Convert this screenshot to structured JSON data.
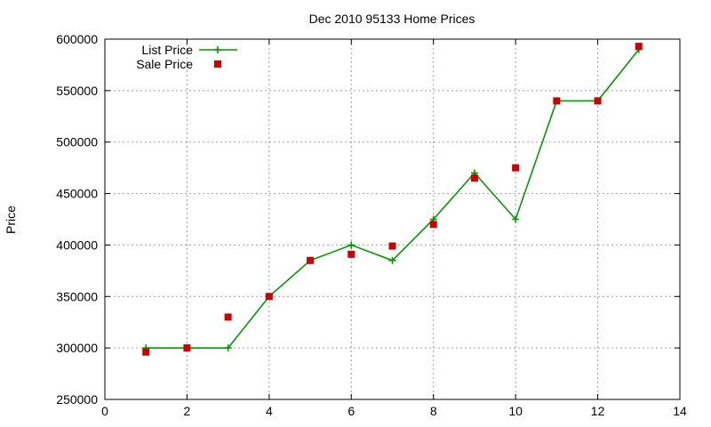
{
  "chart_data": {
    "type": "line",
    "title": "Dec 2010 95133 Home Prices",
    "xlabel": "",
    "ylabel": "Price",
    "xlim": [
      0,
      14
    ],
    "ylim": [
      250000,
      600000
    ],
    "x_ticks": [
      "0",
      "2",
      "4",
      "6",
      "8",
      "10",
      "12",
      "14"
    ],
    "y_ticks": [
      "250000",
      "300000",
      "350000",
      "400000",
      "450000",
      "500000",
      "550000",
      "600000"
    ],
    "grid": true,
    "legend_position": "top-left",
    "series": [
      {
        "name": "List Price",
        "style": "line-plus",
        "color": "#009900",
        "x": [
          1,
          2,
          3,
          4,
          5,
          6,
          7,
          8,
          9,
          10,
          11,
          12,
          13
        ],
        "y": [
          300000,
          300000,
          300000,
          350000,
          385000,
          400000,
          385000,
          425000,
          470000,
          425000,
          540000,
          540000,
          590000
        ]
      },
      {
        "name": "Sale Price",
        "style": "square-points",
        "color": "#cc0000",
        "x": [
          1,
          2,
          3,
          4,
          5,
          6,
          7,
          8,
          9,
          10,
          11,
          12,
          13
        ],
        "y": [
          296000,
          300000,
          330000,
          350000,
          385000,
          391000,
          399000,
          420000,
          465000,
          475000,
          540000,
          540000,
          593000
        ]
      }
    ]
  }
}
